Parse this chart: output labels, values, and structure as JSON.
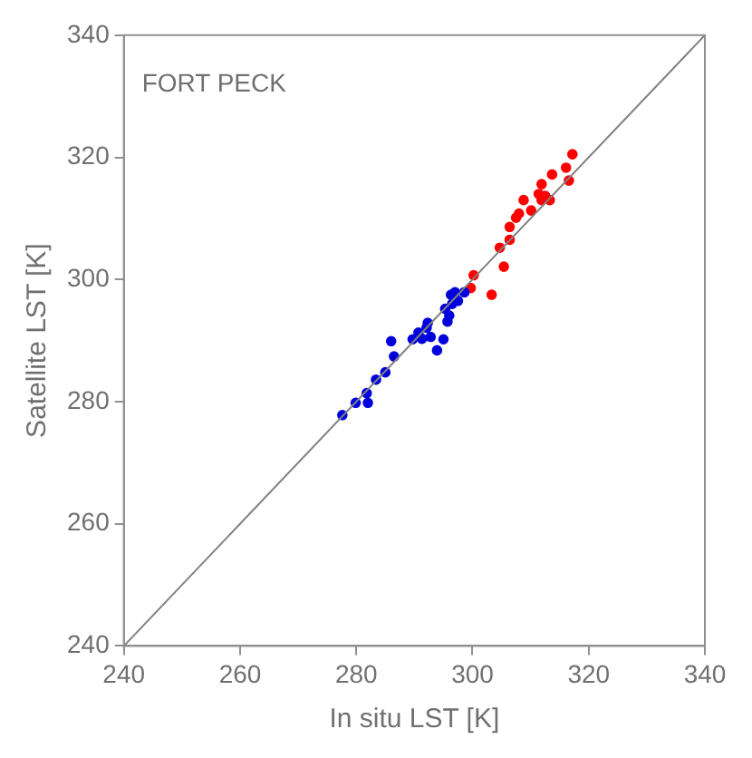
{
  "chart_data": {
    "type": "scatter",
    "xlabel": "In situ LST [K]",
    "ylabel": "Satellite LST [K]",
    "annotations": [
      "FORT PECK"
    ],
    "xlim": [
      240,
      340
    ],
    "xticks": [
      240,
      260,
      280,
      300,
      320,
      340
    ],
    "ylim": [
      240,
      340
    ],
    "yticks": [
      240,
      260,
      280,
      300,
      320,
      340
    ],
    "grid": false,
    "legend": false,
    "marker": "circle",
    "series": [
      {
        "type": "line",
        "color": "#808080",
        "x": [
          240,
          340
        ],
        "values": [
          240,
          340
        ],
        "marker": "none"
      },
      {
        "color": "#0000dd",
        "x": [
          277.6,
          279.9,
          281.8,
          282.0,
          283.4,
          285.0,
          286.0,
          286.5,
          289.7,
          290.7,
          291.3,
          292.1,
          292.3,
          292.8,
          293.9,
          295.0,
          295.3,
          295.7,
          296.0,
          296.3,
          296.5,
          297.0,
          297.5,
          298.6
        ],
        "values": [
          277.8,
          279.8,
          281.4,
          279.8,
          283.6,
          284.8,
          289.9,
          287.4,
          290.2,
          291.3,
          290.3,
          292.1,
          292.9,
          290.6,
          288.4,
          290.2,
          295.2,
          293.1,
          294.1,
          297.5,
          296.0,
          297.9,
          296.5,
          297.9
        ]
      },
      {
        "color": "#ff0000",
        "x": [
          299.7,
          300.2,
          303.3,
          305.4,
          304.7,
          306.4,
          306.4,
          307.5,
          308.0,
          310.1,
          308.8,
          311.9,
          313.3,
          311.9,
          312.5,
          311.4,
          313.7,
          316.6,
          316.1,
          317.2
        ],
        "values": [
          298.6,
          300.7,
          297.5,
          302.1,
          305.2,
          306.5,
          308.6,
          310.1,
          310.8,
          311.3,
          313.0,
          313.0,
          313.0,
          315.6,
          313.7,
          314.0,
          317.2,
          316.2,
          318.3,
          320.5
        ]
      }
    ]
  }
}
